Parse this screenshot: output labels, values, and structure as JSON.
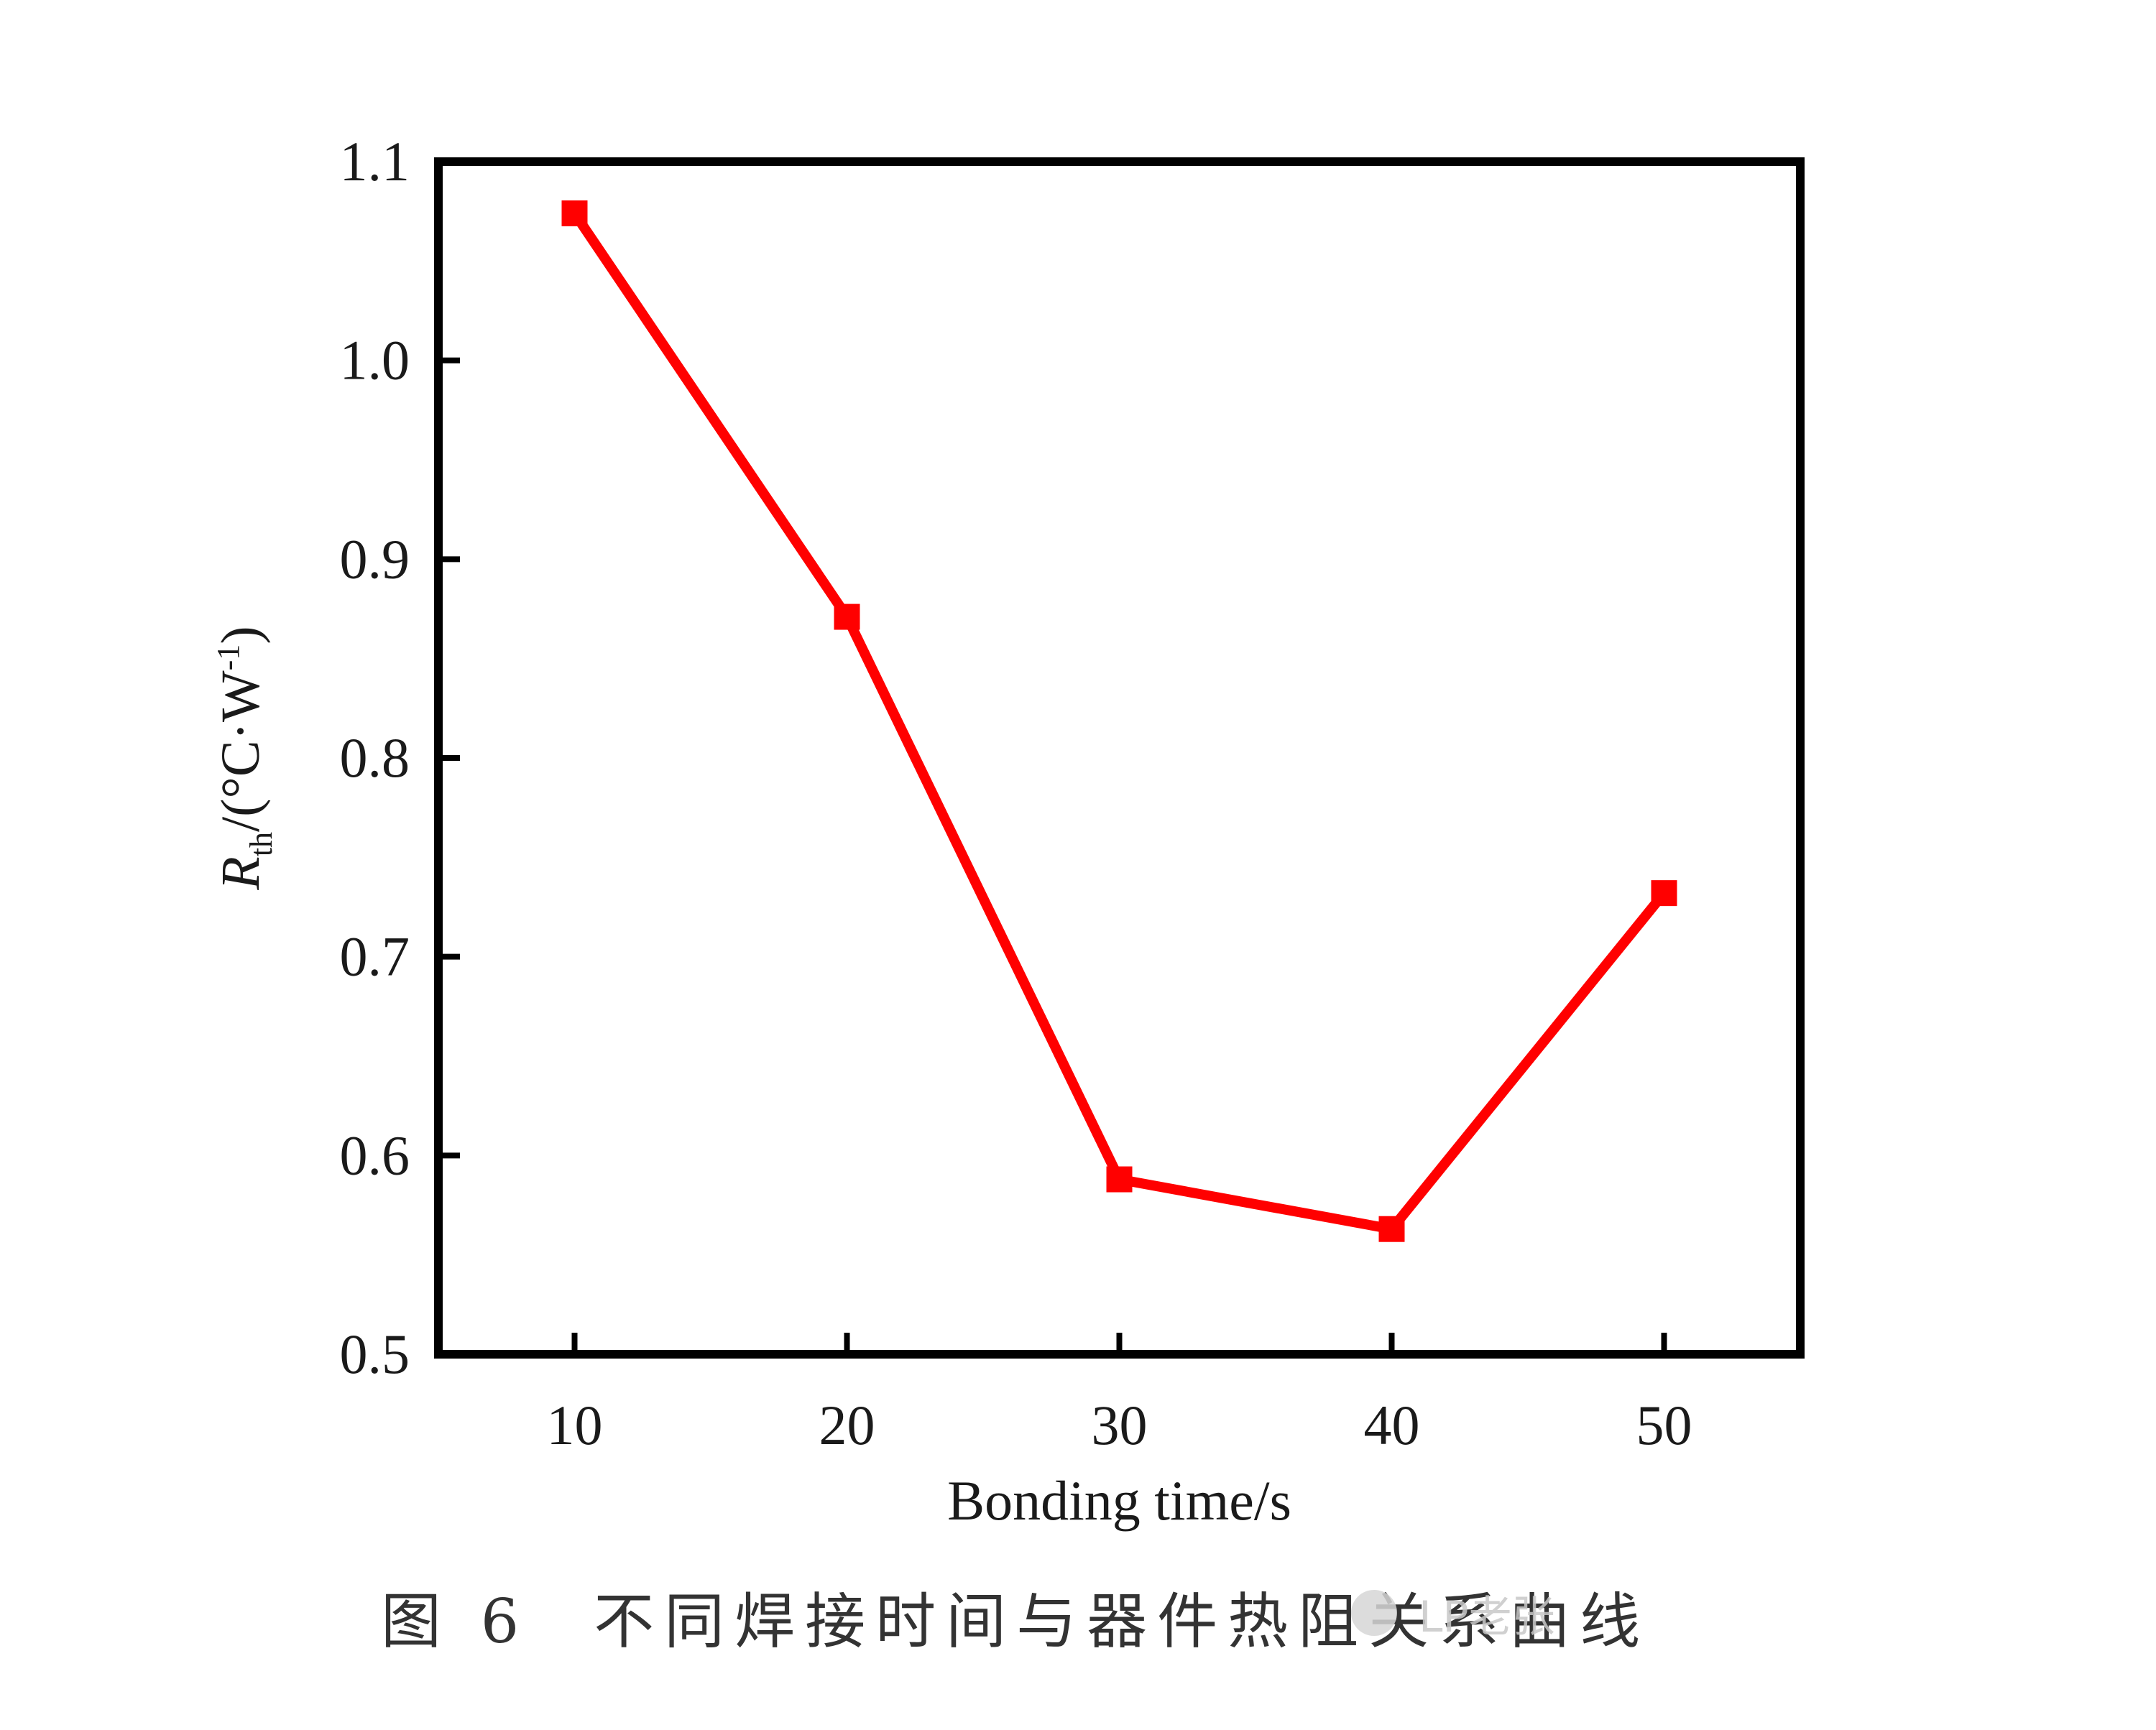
{
  "chart_data": {
    "type": "line",
    "x": [
      10,
      20,
      30,
      40,
      50
    ],
    "series": [
      {
        "values": [
          1.074,
          0.871,
          0.588,
          0.563,
          0.732
        ],
        "color": "#ff0000",
        "marker": "square"
      }
    ],
    "xlabel": "Bonding time/s",
    "ylabel": {
      "symbol": "R",
      "subscript": "th",
      "unit_open": "/(°C·W",
      "unit_sup": "-1",
      "unit_close": ")"
    },
    "xlim": [
      5,
      55
    ],
    "ylim": [
      0.5,
      1.1
    ],
    "xticks": [
      10,
      20,
      30,
      40,
      50
    ],
    "yticks": [
      "0.5",
      "0.6",
      "0.7",
      "0.8",
      "0.9",
      "1.0",
      "1.1"
    ],
    "grid": false,
    "legend": "none"
  },
  "caption": {
    "number": "图 6",
    "text": "不同焊接时间与器件热阻关系曲线"
  },
  "watermark": {
    "text": "LP老张",
    "icon": "wechat-icon"
  }
}
